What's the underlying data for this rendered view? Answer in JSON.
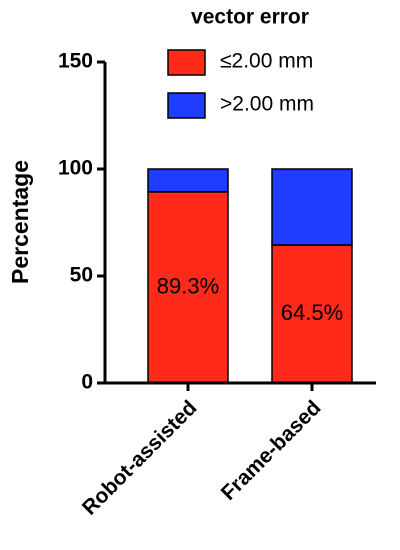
{
  "chart_data": {
    "type": "bar",
    "stacked": true,
    "legend_title": "vector error",
    "ylabel": "Percentage",
    "categories": [
      "Robot-assisted",
      "Frame-based"
    ],
    "series": [
      {
        "name": "≤2.00 mm",
        "color": "#ff2a1a",
        "values": [
          89.3,
          64.5
        ],
        "value_labels": [
          "89.3%",
          "64.5%"
        ]
      },
      {
        "name": ">2.00 mm",
        "color": "#1f3dff",
        "values": [
          10.7,
          35.5
        ]
      }
    ],
    "ylim": [
      0,
      150
    ],
    "yticks": [
      0,
      50,
      100,
      150
    ],
    "grid": false
  }
}
